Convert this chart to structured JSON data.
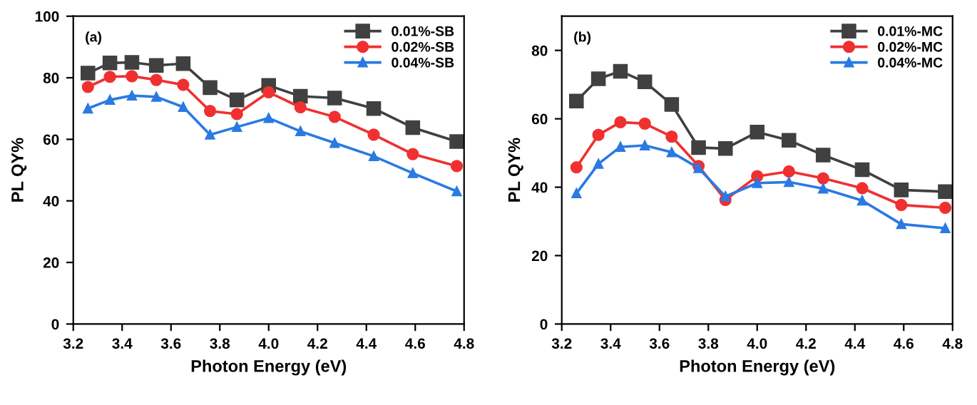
{
  "chart_data": [
    {
      "type": "line",
      "xlabel": "Photon Energy (eV)",
      "ylabel": "PL QY%",
      "annotations": [
        "(a)"
      ],
      "legend": "top right",
      "grid": false,
      "x": [
        3.26,
        3.35,
        3.44,
        3.54,
        3.65,
        3.76,
        3.87,
        4.0,
        4.13,
        4.27,
        4.43,
        4.59,
        4.77
      ],
      "xlim": [
        3.2,
        4.8
      ],
      "xticks": [
        3.2,
        3.4,
        3.6,
        3.8,
        {
          "value": 4,
          "label": "4.0"
        },
        4.2,
        4.4,
        4.6,
        4.8
      ],
      "ylim": [
        0,
        100
      ],
      "yticks": [
        0,
        20,
        40,
        60,
        80,
        100
      ],
      "series": [
        {
          "name": "0.01%-SB",
          "color": "#404040",
          "marker": "square",
          "values": [
            81.5,
            84.8,
            85,
            84,
            84.6,
            76.8,
            72.8,
            77.5,
            74,
            73.4,
            70,
            63.8,
            59.3
          ]
        },
        {
          "name": "0.02%-SB",
          "color": "#f03030",
          "marker": "circle",
          "values": [
            77,
            80.3,
            80.5,
            79.3,
            77.7,
            69.2,
            68.2,
            75.3,
            70.4,
            67.3,
            61.5,
            55.2,
            51.3
          ]
        },
        {
          "name": "0.04%-SB",
          "color": "#2a7ae2",
          "marker": "triangle",
          "values": [
            70,
            72.8,
            74.2,
            73.8,
            70.5,
            61.5,
            64,
            66.9,
            62.6,
            58.8,
            54.5,
            49,
            43.1
          ]
        }
      ]
    },
    {
      "type": "line",
      "xlabel": "Photon Energy (eV)",
      "ylabel": "PL QY%",
      "annotations": [
        "(b)"
      ],
      "legend": "top right",
      "grid": false,
      "x": [
        3.26,
        3.35,
        3.44,
        3.54,
        3.65,
        3.76,
        3.87,
        4.0,
        4.13,
        4.27,
        4.43,
        4.59,
        4.77
      ],
      "xlim": [
        3.2,
        4.8
      ],
      "xticks": [
        3.2,
        3.4,
        3.6,
        3.8,
        {
          "value": 4,
          "label": "4.0"
        },
        4.2,
        4.4,
        4.6,
        4.8
      ],
      "ylim": [
        0,
        90
      ],
      "yticks": [
        0,
        20,
        40,
        60,
        80
      ],
      "series": [
        {
          "name": "0.01%-MC",
          "color": "#404040",
          "marker": "square",
          "values": [
            65.2,
            71.7,
            73.9,
            70.8,
            64.2,
            51.6,
            51.3,
            56.1,
            53.7,
            49.4,
            45.1,
            39.2,
            38.7
          ]
        },
        {
          "name": "0.02%-MC",
          "color": "#f03030",
          "marker": "circle",
          "values": [
            45.8,
            55.3,
            59,
            58.6,
            54.8,
            46.2,
            36.3,
            43.2,
            44.6,
            42.6,
            39.7,
            34.8,
            34.0
          ]
        },
        {
          "name": "0.04%-MC",
          "color": "#2a7ae2",
          "marker": "triangle",
          "values": [
            38.2,
            46.8,
            51.8,
            52.2,
            50.2,
            45.6,
            37.3,
            41.2,
            41.5,
            39.6,
            36.1,
            29.2,
            28.0
          ]
        }
      ]
    }
  ]
}
